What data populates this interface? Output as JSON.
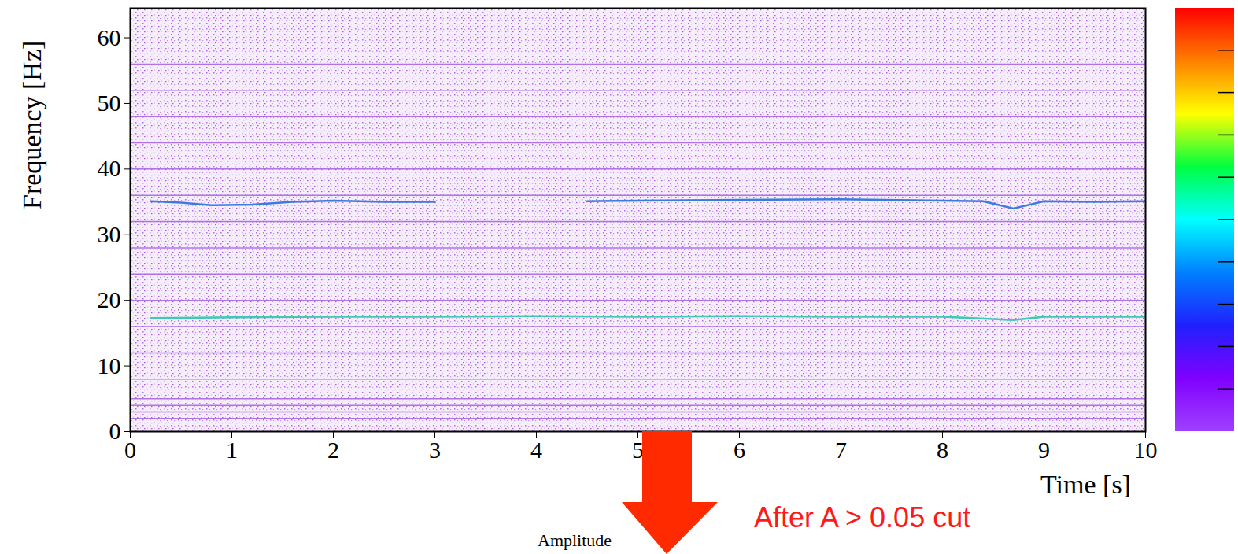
{
  "chart_data": {
    "type": "heatmap",
    "xlabel": "Time [s]",
    "ylabel": "Frequency [Hz]",
    "colorbar_label": "Amplitude",
    "annotation": "After A > 0.05 cut",
    "xlim": [
      0,
      10
    ],
    "xticks": [
      0,
      1,
      2,
      3,
      4,
      5,
      6,
      7,
      8,
      9,
      10
    ],
    "ylim": [
      0,
      64.5
    ],
    "yticks": [
      0,
      10,
      20,
      30,
      40,
      50,
      60
    ],
    "harmonics": {
      "frequencies": [
        2,
        3,
        4,
        5,
        8,
        12,
        16,
        20,
        24,
        28,
        32,
        36,
        40,
        44,
        48,
        52,
        56
      ],
      "color": "#a65ee0"
    },
    "series": [
      {
        "color": "#3fc8b8",
        "x": [
          0.2,
          1,
          2,
          3,
          4,
          5,
          6,
          7,
          8,
          8.7,
          9,
          10
        ],
        "values": [
          17.3,
          17.4,
          17.5,
          17.5,
          17.6,
          17.5,
          17.6,
          17.5,
          17.5,
          17.0,
          17.5,
          17.5
        ]
      },
      {
        "color": "#3a7be0",
        "x": [
          0.2,
          0.5,
          0.8,
          1.2,
          1.6,
          2,
          2.5,
          3,
          3.9,
          4.5,
          5,
          6,
          7,
          8,
          8.4,
          8.7,
          9,
          9.5,
          10
        ],
        "values": [
          35.1,
          34.9,
          34.5,
          34.6,
          35,
          35.2,
          35,
          35,
          null,
          35.1,
          35.2,
          35.3,
          35.4,
          35.2,
          35.1,
          34.0,
          35.1,
          35,
          35.1
        ]
      }
    ]
  }
}
